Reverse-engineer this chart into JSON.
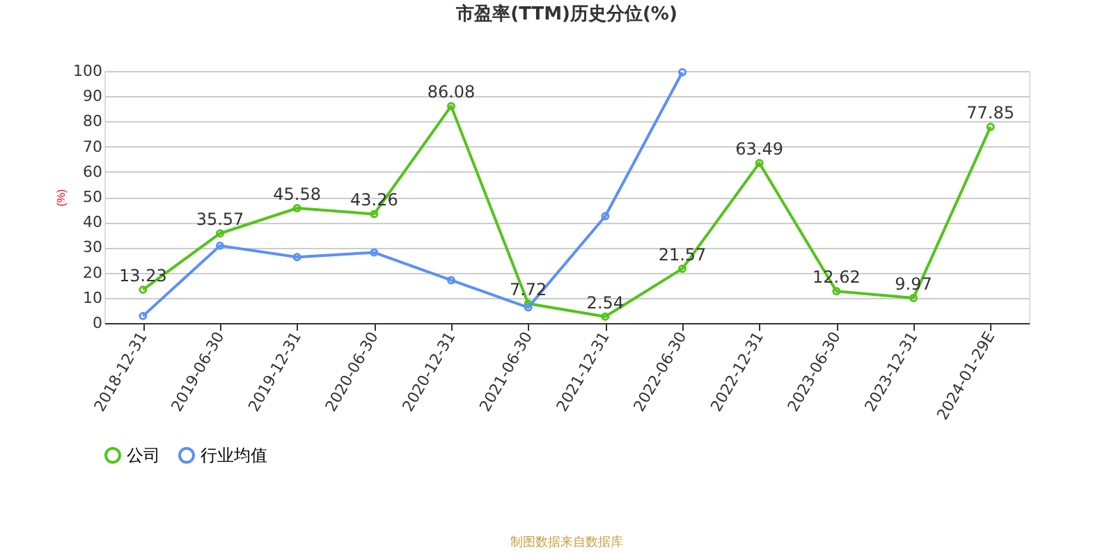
{
  "chart_data": {
    "type": "line",
    "title": "市盈率(TTM)历史分位(%)",
    "ylabel": "(%)",
    "categories": [
      "2018-12-31",
      "2019-06-30",
      "2019-12-31",
      "2020-06-30",
      "2020-12-31",
      "2021-06-30",
      "2021-12-31",
      "2022-06-30",
      "2022-12-31",
      "2023-06-30",
      "2023-12-31",
      "2024-01-29E"
    ],
    "series": [
      {
        "name": "公司",
        "color": "#52c41a",
        "values": [
          13.23,
          35.57,
          45.58,
          43.26,
          86.08,
          7.72,
          2.54,
          21.57,
          63.49,
          12.62,
          9.97,
          77.85
        ],
        "value_labels": [
          "13.23",
          "35.57",
          "45.58",
          "43.26",
          "86.08",
          "7.72",
          "2.54",
          "21.57",
          "63.49",
          "12.62",
          "9.97",
          "77.85"
        ]
      },
      {
        "name": "行业均值",
        "color": "#5b8ff9",
        "values": [
          2.8,
          30.7,
          26.2,
          28,
          17,
          6.2,
          42.4,
          99.5,
          null,
          null,
          null,
          null
        ]
      }
    ],
    "ylim": [
      0,
      100
    ],
    "yticks": [
      0,
      10,
      20,
      30,
      40,
      50,
      60,
      70,
      80,
      90,
      100
    ],
    "grid": "y",
    "legend": "bottom",
    "marker": "circle",
    "line_style": "solid",
    "annotations": [
      "制图数据来自数据库"
    ]
  }
}
